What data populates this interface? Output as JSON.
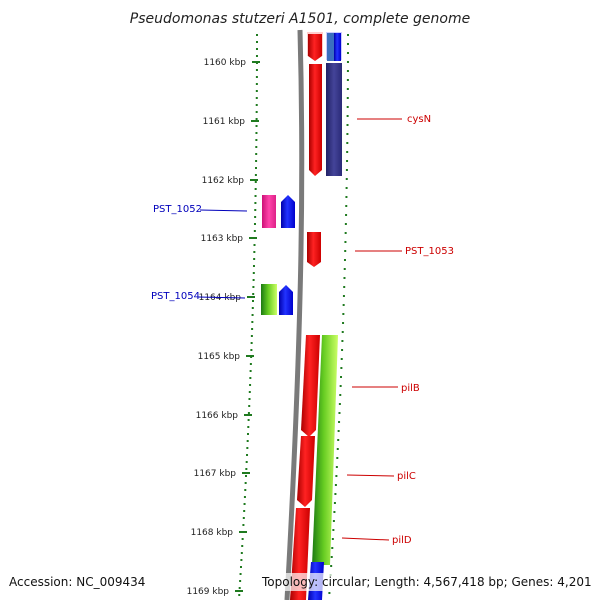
{
  "title": "Pseudomonas stutzeri A1501, complete genome",
  "footer": {
    "accession": "Accession: NC_009434",
    "topology": "Topology: circular; Length: 4,567,418 bp; Genes: 4,201"
  },
  "ticks": [
    "1160 kbp",
    "1161 kbp",
    "1162 kbp",
    "1163 kbp",
    "1164 kbp",
    "1165 kbp",
    "1166 kbp",
    "1167 kbp",
    "1168 kbp",
    "1169 kbp"
  ],
  "labels": {
    "cysN": "cysN",
    "pst1053": "PST_1053",
    "pilB": "pilB",
    "pilC": "pilC",
    "pilD": "pilD",
    "pst1052": "PST_1052",
    "pst1054": "PST_1054"
  },
  "colors": {
    "red": "#ee1111",
    "blue": "#1111ee",
    "navy": "#333388",
    "pink": "#ee3399",
    "green": "#66cc22",
    "dots": "#1f7a1f",
    "backbone": "#7a7a7a"
  }
}
